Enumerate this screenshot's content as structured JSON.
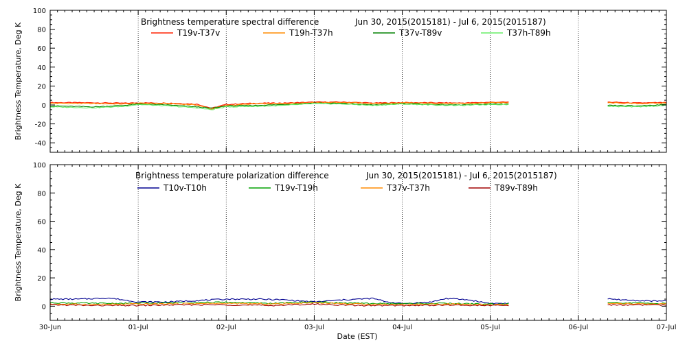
{
  "figure": {
    "xlabel": "Date (EST)",
    "x_ticks": [
      "30-Jun",
      "01-Jul",
      "02-Jul",
      "03-Jul",
      "04-Jul",
      "05-Jul",
      "06-Jul",
      "07-Jul"
    ],
    "colors": {
      "axis": "#000000",
      "gridline": "#000000",
      "background": "#ffffff"
    }
  },
  "chart_data": [
    {
      "type": "line",
      "title": "Brightness temperature spectral difference",
      "date_range": "Jun 30, 2015(2015181) - Jul  6, 2015(2015187)",
      "ylabel": "Brightness Temperature, Deg K",
      "xlim": [
        "2015-06-30",
        "2015-07-07"
      ],
      "ylim": [
        -50,
        100
      ],
      "y_ticks": [
        -40,
        -20,
        0,
        20,
        40,
        60,
        80,
        100
      ],
      "grid": "vertical dotted lines at each day",
      "legend_position": "top",
      "data_gap": [
        "2015-07-05 05:00",
        "2015-07-06 08:00"
      ],
      "series": [
        {
          "name": "T19v-T37v",
          "color": "#ff2000",
          "width": 1.3,
          "points": [
            [
              "06-30 00:00",
              2.5
            ],
            [
              "06-30 12:00",
              2.3
            ],
            [
              "06-30 20:00",
              1.8
            ],
            [
              "07-01 00:00",
              2.2
            ],
            [
              "07-01 08:00",
              2.0
            ],
            [
              "07-01 16:00",
              0.8
            ],
            [
              "07-01 20:00",
              -3.5
            ],
            [
              "07-02 00:00",
              0.5
            ],
            [
              "07-02 08:00",
              1.8
            ],
            [
              "07-02 16:00",
              2.0
            ],
            [
              "07-03 00:00",
              3.0
            ],
            [
              "07-03 08:00",
              3.0
            ],
            [
              "07-03 16:00",
              2.0
            ],
            [
              "07-04 00:00",
              2.5
            ],
            [
              "07-04 08:00",
              2.3
            ],
            [
              "07-04 16:00",
              2.0
            ],
            [
              "07-05 00:00",
              2.8
            ],
            [
              "07-05 05:00",
              3.0
            ],
            [
              "07-06 08:00",
              3.0
            ],
            [
              "07-06 16:00",
              2.0
            ],
            [
              "07-07 00:00",
              2.5
            ]
          ]
        },
        {
          "name": "T19h-T37h",
          "color": "#ff8c00",
          "width": 1.1,
          "points": [
            [
              "06-30 00:00",
              1.8
            ],
            [
              "06-30 12:00",
              1.5
            ],
            [
              "06-30 20:00",
              1.0
            ],
            [
              "07-01 00:00",
              1.8
            ],
            [
              "07-01 08:00",
              1.5
            ],
            [
              "07-01 16:00",
              0.0
            ],
            [
              "07-01 20:00",
              -4.5
            ],
            [
              "07-02 00:00",
              -0.5
            ],
            [
              "07-02 08:00",
              1.2
            ],
            [
              "07-02 16:00",
              1.5
            ],
            [
              "07-03 00:00",
              2.5
            ],
            [
              "07-03 08:00",
              2.5
            ],
            [
              "07-03 16:00",
              1.5
            ],
            [
              "07-04 00:00",
              2.0
            ],
            [
              "07-04 08:00",
              1.8
            ],
            [
              "07-04 16:00",
              1.5
            ],
            [
              "07-05 00:00",
              2.2
            ],
            [
              "07-05 05:00",
              2.5
            ],
            [
              "07-06 08:00",
              2.2
            ],
            [
              "07-06 16:00",
              1.5
            ],
            [
              "07-07 00:00",
              2.0
            ]
          ]
        },
        {
          "name": "T37v-T89v",
          "color": "#008000",
          "width": 1.1,
          "points": [
            [
              "06-30 00:00",
              -1.0
            ],
            [
              "06-30 12:00",
              -2.0
            ],
            [
              "06-30 20:00",
              -0.5
            ],
            [
              "07-01 00:00",
              1.0
            ],
            [
              "07-01 08:00",
              0.0
            ],
            [
              "07-01 16:00",
              -2.0
            ],
            [
              "07-01 20:00",
              -3.5
            ],
            [
              "07-02 00:00",
              -1.0
            ],
            [
              "07-02 08:00",
              -0.5
            ],
            [
              "07-02 16:00",
              0.5
            ],
            [
              "07-03 00:00",
              2.0
            ],
            [
              "07-03 08:00",
              1.5
            ],
            [
              "07-03 16:00",
              0.0
            ],
            [
              "07-04 00:00",
              1.5
            ],
            [
              "07-04 08:00",
              0.5
            ],
            [
              "07-04 16:00",
              0.0
            ],
            [
              "07-05 00:00",
              1.0
            ],
            [
              "07-05 05:00",
              1.0
            ],
            [
              "07-06 08:00",
              -0.5
            ],
            [
              "07-06 16:00",
              -1.0
            ],
            [
              "07-07 00:00",
              0.5
            ]
          ]
        },
        {
          "name": "T37h-T89h",
          "color": "#66ee66",
          "width": 1.1,
          "points": [
            [
              "06-30 00:00",
              -2.0
            ],
            [
              "06-30 12:00",
              -3.0
            ],
            [
              "06-30 20:00",
              -1.5
            ],
            [
              "07-01 00:00",
              0.5
            ],
            [
              "07-01 08:00",
              -1.0
            ],
            [
              "07-01 16:00",
              -3.0
            ],
            [
              "07-01 20:00",
              -5.0
            ],
            [
              "07-02 00:00",
              -2.0
            ],
            [
              "07-02 08:00",
              -1.5
            ],
            [
              "07-02 16:00",
              -0.5
            ],
            [
              "07-03 00:00",
              1.5
            ],
            [
              "07-03 08:00",
              1.0
            ],
            [
              "07-03 16:00",
              -0.5
            ],
            [
              "07-04 00:00",
              1.0
            ],
            [
              "07-04 08:00",
              0.0
            ],
            [
              "07-04 16:00",
              -0.5
            ],
            [
              "07-05 00:00",
              0.5
            ],
            [
              "07-05 05:00",
              0.5
            ],
            [
              "07-06 08:00",
              -1.5
            ],
            [
              "07-06 16:00",
              -2.0
            ],
            [
              "07-07 00:00",
              -0.5
            ]
          ]
        }
      ]
    },
    {
      "type": "line",
      "title": "Brightness temperature polarization difference",
      "date_range": "Jun 30, 2015(2015181) - Jul  6, 2015(2015187)",
      "ylabel": "Brightness Temperature, Deg K",
      "xlim": [
        "2015-06-30",
        "2015-07-07"
      ],
      "ylim": [
        -10,
        100
      ],
      "y_ticks": [
        0,
        20,
        40,
        60,
        80,
        100
      ],
      "grid": "vertical dotted lines at each day",
      "legend_position": "top",
      "data_gap": [
        "2015-07-05 05:00",
        "2015-07-06 08:00"
      ],
      "series": [
        {
          "name": "T10v-T10h",
          "color": "#000090",
          "width": 1.1,
          "points": [
            [
              "06-30 00:00",
              5.0
            ],
            [
              "06-30 08:00",
              5.0
            ],
            [
              "06-30 16:00",
              5.8
            ],
            [
              "06-30 20:00",
              4.5
            ],
            [
              "07-01 00:00",
              3.0
            ],
            [
              "07-01 08:00",
              3.0
            ],
            [
              "07-01 16:00",
              4.0
            ],
            [
              "07-01 20:00",
              4.5
            ],
            [
              "07-02 00:00",
              5.0
            ],
            [
              "07-02 08:00",
              5.0
            ],
            [
              "07-02 16:00",
              4.5
            ],
            [
              "07-03 00:00",
              3.0
            ],
            [
              "07-03 08:00",
              4.5
            ],
            [
              "07-03 16:00",
              5.5
            ],
            [
              "07-03 20:00",
              3.0
            ],
            [
              "07-04 00:00",
              1.8
            ],
            [
              "07-04 08:00",
              3.0
            ],
            [
              "07-04 12:00",
              5.5
            ],
            [
              "07-04 18:00",
              4.5
            ],
            [
              "07-05 00:00",
              2.0
            ],
            [
              "07-05 05:00",
              2.0
            ],
            [
              "07-06 08:00",
              5.0
            ],
            [
              "07-06 16:00",
              4.0
            ],
            [
              "07-07 00:00",
              3.5
            ]
          ]
        },
        {
          "name": "T19v-T19h",
          "color": "#00a000",
          "width": 1.1,
          "points": [
            [
              "06-30 00:00",
              2.5
            ],
            [
              "06-30 12:00",
              2.0
            ],
            [
              "07-01 00:00",
              2.0
            ],
            [
              "07-01 12:00",
              2.5
            ],
            [
              "07-02 00:00",
              2.8
            ],
            [
              "07-02 12:00",
              2.0
            ],
            [
              "07-03 00:00",
              3.0
            ],
            [
              "07-03 12:00",
              2.0
            ],
            [
              "07-04 00:00",
              1.8
            ],
            [
              "07-04 12:00",
              2.0
            ],
            [
              "07-05 00:00",
              1.5
            ],
            [
              "07-05 05:00",
              1.5
            ],
            [
              "07-06 08:00",
              2.5
            ],
            [
              "07-07 00:00",
              2.0
            ]
          ]
        },
        {
          "name": "T37v-T37h",
          "color": "#ff8c00",
          "width": 1.1,
          "points": [
            [
              "06-30 00:00",
              1.5
            ],
            [
              "06-30 12:00",
              1.2
            ],
            [
              "07-01 00:00",
              1.5
            ],
            [
              "07-01 12:00",
              1.8
            ],
            [
              "07-02 00:00",
              2.0
            ],
            [
              "07-02 12:00",
              1.5
            ],
            [
              "07-03 00:00",
              2.5
            ],
            [
              "07-03 12:00",
              1.5
            ],
            [
              "07-04 00:00",
              1.2
            ],
            [
              "07-04 12:00",
              1.5
            ],
            [
              "07-05 00:00",
              1.0
            ],
            [
              "07-05 05:00",
              1.0
            ],
            [
              "07-06 08:00",
              1.8
            ],
            [
              "07-07 00:00",
              1.5
            ]
          ]
        },
        {
          "name": "T89v-T89h",
          "color": "#a00000",
          "width": 1.1,
          "points": [
            [
              "06-30 00:00",
              1.0
            ],
            [
              "06-30 12:00",
              0.5
            ],
            [
              "07-01 00:00",
              0.5
            ],
            [
              "07-01 12:00",
              1.0
            ],
            [
              "07-02 00:00",
              1.0
            ],
            [
              "07-02 12:00",
              0.5
            ],
            [
              "07-03 00:00",
              1.5
            ],
            [
              "07-03 12:00",
              0.5
            ],
            [
              "07-04 00:00",
              0.5
            ],
            [
              "07-04 12:00",
              0.8
            ],
            [
              "07-05 00:00",
              0.5
            ],
            [
              "07-05 05:00",
              0.5
            ],
            [
              "07-06 08:00",
              1.0
            ],
            [
              "07-07 00:00",
              0.8
            ]
          ]
        }
      ]
    }
  ]
}
